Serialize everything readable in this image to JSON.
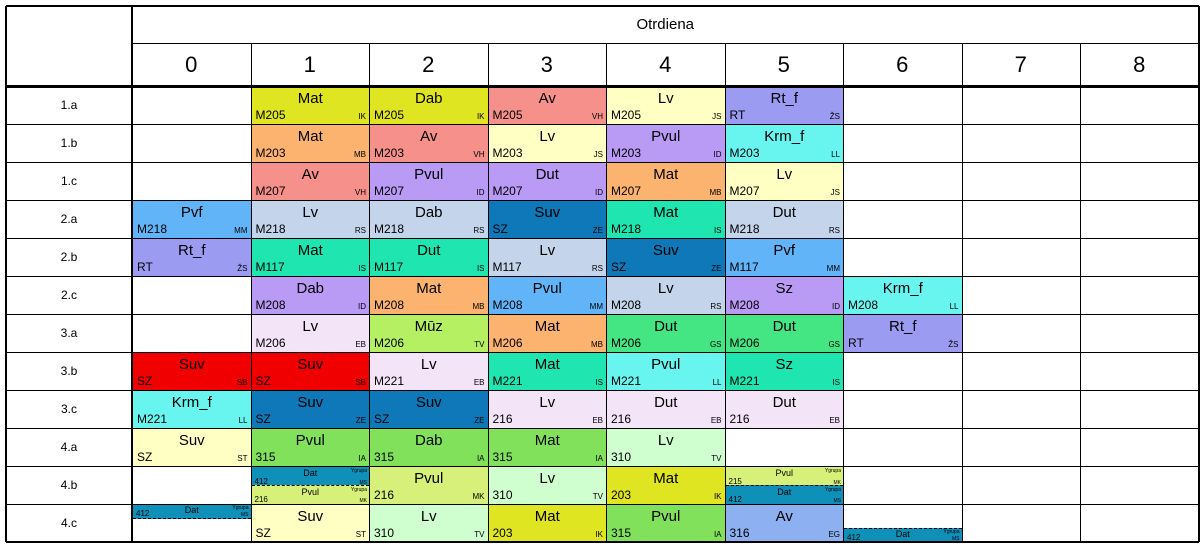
{
  "header": {
    "title": "Otrdiena",
    "periods": [
      "0",
      "1",
      "2",
      "3",
      "4",
      "5",
      "6",
      "7",
      "8"
    ]
  },
  "rows": [
    {
      "label": "1.a",
      "cells": [
        null,
        {
          "subject": "Mat",
          "room": "M205",
          "teacher": "IK",
          "color": "#dfe520"
        },
        {
          "subject": "Dab",
          "room": "M205",
          "teacher": "IK",
          "color": "#dfe520"
        },
        {
          "subject": "Av",
          "room": "M205",
          "teacher": "VH",
          "color": "#f5908a"
        },
        {
          "subject": "Lv",
          "room": "M205",
          "teacher": "JS",
          "color": "#ffffc4"
        },
        {
          "subject": "Rt_f",
          "room": "RT",
          "teacher": "ŽS",
          "color": "#9b9bf2"
        },
        null,
        null,
        null
      ]
    },
    {
      "label": "1.b",
      "cells": [
        null,
        {
          "subject": "Mat",
          "room": "M203",
          "teacher": "MB",
          "color": "#fbb36f"
        },
        {
          "subject": "Av",
          "room": "M203",
          "teacher": "VH",
          "color": "#f5908a"
        },
        {
          "subject": "Lv",
          "room": "M203",
          "teacher": "JS",
          "color": "#ffffc4"
        },
        {
          "subject": "Pvul",
          "room": "M203",
          "teacher": "ID",
          "color": "#b99af4"
        },
        {
          "subject": "Krm_f",
          "room": "M203",
          "teacher": "LL",
          "color": "#68f5f0"
        },
        null,
        null,
        null
      ]
    },
    {
      "label": "1.c",
      "cells": [
        null,
        {
          "subject": "Av",
          "room": "M207",
          "teacher": "VH",
          "color": "#f5908a"
        },
        {
          "subject": "Pvul",
          "room": "M207",
          "teacher": "ID",
          "color": "#b99af4"
        },
        {
          "subject": "Dut",
          "room": "M207",
          "teacher": "ID",
          "color": "#b99af4"
        },
        {
          "subject": "Mat",
          "room": "M207",
          "teacher": "MB",
          "color": "#fbb36f"
        },
        {
          "subject": "Lv",
          "room": "M207",
          "teacher": "JS",
          "color": "#ffffc4"
        },
        null,
        null,
        null
      ]
    },
    {
      "label": "2.a",
      "cells": [
        {
          "subject": "Pvf",
          "room": "M218",
          "teacher": "MM",
          "color": "#62b4f8"
        },
        {
          "subject": "Lv",
          "room": "M218",
          "teacher": "RS",
          "color": "#c4d4ea"
        },
        {
          "subject": "Dab",
          "room": "M218",
          "teacher": "RS",
          "color": "#c4d4ea"
        },
        {
          "subject": "Suv",
          "room": "SZ",
          "teacher": "ZE",
          "color": "#0f78b8"
        },
        {
          "subject": "Mat",
          "room": "M218",
          "teacher": "IS",
          "color": "#1fe6b0"
        },
        {
          "subject": "Dut",
          "room": "M218",
          "teacher": "RS",
          "color": "#c4d4ea"
        },
        null,
        null,
        null
      ]
    },
    {
      "label": "2.b",
      "cells": [
        {
          "subject": "Rt_f",
          "room": "RT",
          "teacher": "ŽS",
          "color": "#9b9bf2"
        },
        {
          "subject": "Mat",
          "room": "M117",
          "teacher": "IS",
          "color": "#1fe6b0"
        },
        {
          "subject": "Dut",
          "room": "M117",
          "teacher": "IS",
          "color": "#1fe6b0"
        },
        {
          "subject": "Lv",
          "room": "M117",
          "teacher": "RS",
          "color": "#c4d4ea"
        },
        {
          "subject": "Suv",
          "room": "SZ",
          "teacher": "ZE",
          "color": "#0f78b8"
        },
        {
          "subject": "Pvf",
          "room": "M117",
          "teacher": "MM",
          "color": "#62b4f8"
        },
        null,
        null,
        null
      ]
    },
    {
      "label": "2.c",
      "cells": [
        null,
        {
          "subject": "Dab",
          "room": "M208",
          "teacher": "ID",
          "color": "#b99af4"
        },
        {
          "subject": "Mat",
          "room": "M208",
          "teacher": "MB",
          "color": "#fbb36f"
        },
        {
          "subject": "Pvul",
          "room": "M208",
          "teacher": "MM",
          "color": "#62b4f8"
        },
        {
          "subject": "Lv",
          "room": "M208",
          "teacher": "RS",
          "color": "#c4d4ea"
        },
        {
          "subject": "Sz",
          "room": "M208",
          "teacher": "ID",
          "color": "#b99af4"
        },
        {
          "subject": "Krm_f",
          "room": "M208",
          "teacher": "LL",
          "color": "#68f5f0"
        },
        null,
        null
      ]
    },
    {
      "label": "3.a",
      "cells": [
        null,
        {
          "subject": "Lv",
          "room": "M206",
          "teacher": "EB",
          "color": "#f4e4f8"
        },
        {
          "subject": "Mūz",
          "room": "M206",
          "teacher": "TV",
          "color": "#b5ef62"
        },
        {
          "subject": "Mat",
          "room": "M206",
          "teacher": "MB",
          "color": "#fbb36f"
        },
        {
          "subject": "Dut",
          "room": "M206",
          "teacher": "GS",
          "color": "#44e684"
        },
        {
          "subject": "Dut",
          "room": "M206",
          "teacher": "GS",
          "color": "#44e684"
        },
        {
          "subject": "Rt_f",
          "room": "RT",
          "teacher": "ŽS",
          "color": "#9b9bf2"
        },
        null,
        null
      ]
    },
    {
      "label": "3.b",
      "cells": [
        {
          "subject": "Suv",
          "room": "SZ",
          "teacher": "SB",
          "color": "#f00000"
        },
        {
          "subject": "Suv",
          "room": "SZ",
          "teacher": "SB",
          "color": "#f00000"
        },
        {
          "subject": "Lv",
          "room": "M221",
          "teacher": "EB",
          "color": "#f4e4f8"
        },
        {
          "subject": "Mat",
          "room": "M221",
          "teacher": "IS",
          "color": "#1fe6b0"
        },
        {
          "subject": "Pvul",
          "room": "M221",
          "teacher": "LL",
          "color": "#68f5f0"
        },
        {
          "subject": "Sz",
          "room": "M221",
          "teacher": "IS",
          "color": "#1fe6b0"
        },
        null,
        null,
        null
      ]
    },
    {
      "label": "3.c",
      "cells": [
        {
          "subject": "Krm_f",
          "room": "M221",
          "teacher": "LL",
          "color": "#68f5f0"
        },
        {
          "subject": "Suv",
          "room": "SZ",
          "teacher": "ZE",
          "color": "#0f78b8"
        },
        {
          "subject": "Suv",
          "room": "SZ",
          "teacher": "ZE",
          "color": "#0f78b8"
        },
        {
          "subject": "Lv",
          "room": "216",
          "teacher": "EB",
          "color": "#f4e4f8"
        },
        {
          "subject": "Dut",
          "room": "216",
          "teacher": "EB",
          "color": "#f4e4f8"
        },
        {
          "subject": "Dut",
          "room": "216",
          "teacher": "EB",
          "color": "#f4e4f8"
        },
        null,
        null,
        null
      ]
    },
    {
      "label": "4.a",
      "cells": [
        {
          "subject": "Suv",
          "room": "SZ",
          "teacher": "ST",
          "color": "#ffffc4"
        },
        {
          "subject": "Pvul",
          "room": "315",
          "teacher": "IA",
          "color": "#82e15a"
        },
        {
          "subject": "Dab",
          "room": "315",
          "teacher": "IA",
          "color": "#82e15a"
        },
        {
          "subject": "Mat",
          "room": "315",
          "teacher": "IA",
          "color": "#82e15a"
        },
        {
          "subject": "Lv",
          "room": "310",
          "teacher": "TV",
          "color": "#cfffcf"
        },
        null,
        null,
        null,
        null
      ]
    },
    {
      "label": "4.b",
      "cells": [
        null,
        {
          "split": [
            {
              "subject": "Dat",
              "room": "412",
              "teacher": "Ygrupa",
              "teacher2": "MS",
              "color": "#0f90b8"
            },
            {
              "subject": "Pvul",
              "room": "216",
              "teacher": "Ygrupa",
              "teacher2": "MK",
              "color": "#d6f07a"
            }
          ]
        },
        {
          "subject": "Pvul",
          "room": "216",
          "teacher": "MK",
          "color": "#d6f07a"
        },
        {
          "subject": "Lv",
          "room": "310",
          "teacher": "TV",
          "color": "#cfffcf"
        },
        {
          "subject": "Mat",
          "room": "203",
          "teacher": "IK",
          "color": "#dfe520"
        },
        {
          "split": [
            {
              "subject": "Pvul",
              "room": "215",
              "teacher": "Ygrupa",
              "teacher2": "MK",
              "color": "#d6f07a"
            },
            {
              "subject": "Dat",
              "room": "412",
              "teacher": "Ygrupa",
              "teacher2": "MS",
              "color": "#0f90b8"
            }
          ]
        },
        null,
        null,
        null
      ]
    },
    {
      "label": "4.c",
      "cells": [
        {
          "partial": "top",
          "subject": "Dat",
          "room": "412",
          "teacher": "Ygrupa",
          "teacher2": "MS",
          "color": "#0f90b8"
        },
        {
          "subject": "Suv",
          "room": "SZ",
          "teacher": "ST",
          "color": "#ffffc4"
        },
        {
          "subject": "Lv",
          "room": "310",
          "teacher": "TV",
          "color": "#cfffcf"
        },
        {
          "subject": "Mat",
          "room": "203",
          "teacher": "IK",
          "color": "#dfe520"
        },
        {
          "subject": "Pvul",
          "room": "315",
          "teacher": "IA",
          "color": "#82e15a"
        },
        {
          "subject": "Av",
          "room": "316",
          "teacher": "EG",
          "color": "#8cb0f0"
        },
        {
          "partial": "bottom",
          "subject": "Dat",
          "room": "412",
          "teacher": "Ygrupa",
          "teacher2": "MS",
          "color": "#0f90b8"
        },
        null,
        null
      ]
    }
  ]
}
